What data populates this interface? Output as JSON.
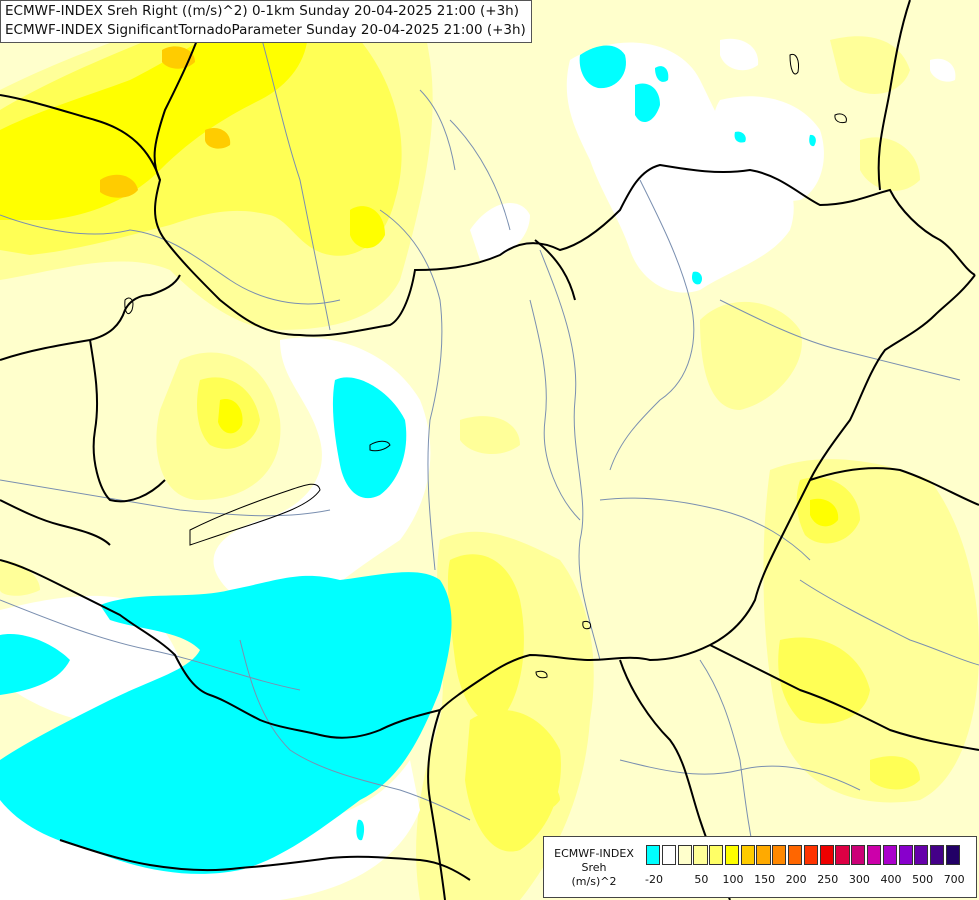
{
  "titles": {
    "line1": "ECMWF-INDEX Sreh Right ((m/s)^2) 0-1km Sunday 20-04-2025 21:00 (+3h)",
    "line2": "ECMWF-INDEX SignificantTornadoParameter Sunday 20-04-2025 21:00 (+3h)"
  },
  "legend": {
    "line1": "ECMWF-INDEX",
    "line2": "Sreh",
    "line3": "(m/s)^2",
    "colors": [
      "#00ffff",
      "#ffffff",
      "#ffffcc",
      "#ffff99",
      "#ffff66",
      "#ffff00",
      "#ffcc00",
      "#ffaa00",
      "#ff8800",
      "#ff6600",
      "#ff3300",
      "#ee0000",
      "#dd0044",
      "#cc0077",
      "#cc00aa",
      "#aa00cc",
      "#8800cc",
      "#6600aa",
      "#440088",
      "#220066"
    ],
    "ticks": [
      "-20",
      "50",
      "100",
      "150",
      "200",
      "250",
      "300",
      "400",
      "500",
      "700"
    ]
  },
  "map_colors": {
    "background": "#ffffcc",
    "light_yellow": "#ffff99",
    "yellow": "#ffff55",
    "strong_yellow": "#ffff00",
    "gold": "#ffcc00",
    "white": "#ffffff",
    "cyan": "#00ffff",
    "border": "#000000",
    "river": "#7a8fb0"
  }
}
